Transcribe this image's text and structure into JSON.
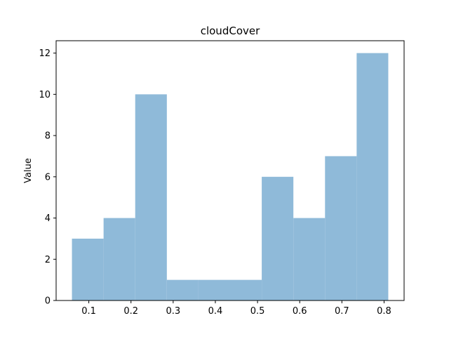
{
  "chart_data": {
    "type": "bar",
    "subtype": "histogram",
    "title": "cloudCover",
    "xlabel": "",
    "ylabel": "Value",
    "bin_edges": [
      0.06,
      0.135,
      0.21,
      0.285,
      0.36,
      0.435,
      0.51,
      0.585,
      0.66,
      0.735,
      0.81
    ],
    "values": [
      3,
      4,
      10,
      1,
      1,
      1,
      6,
      4,
      7,
      12
    ],
    "xlim": [
      0.0225,
      0.8475
    ],
    "ylim": [
      0,
      12.6
    ],
    "xticks": [
      0.1,
      0.2,
      0.3,
      0.4,
      0.5,
      0.6,
      0.7,
      0.8
    ],
    "xtick_labels": [
      "0.1",
      "0.2",
      "0.3",
      "0.4",
      "0.5",
      "0.6",
      "0.7",
      "0.8"
    ],
    "yticks": [
      0,
      2,
      4,
      6,
      8,
      10,
      12
    ],
    "ytick_labels": [
      "0",
      "2",
      "4",
      "6",
      "8",
      "10",
      "12"
    ],
    "bar_color": "#8fbad9",
    "grid": false,
    "legend": "none"
  }
}
